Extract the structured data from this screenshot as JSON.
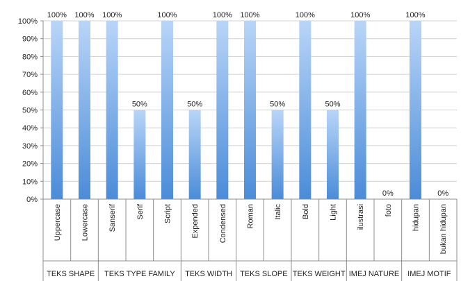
{
  "chart_data": {
    "type": "bar",
    "categories": [
      "Uppercase",
      "Lowercase",
      "Sanserif",
      "Serif",
      "Script",
      "Expended",
      "Condensed",
      "Roman",
      "Italic",
      "Bold",
      "Light",
      "ilustrasi",
      "foto",
      "hidupan",
      "bukan hidupan"
    ],
    "values": [
      100,
      100,
      100,
      50,
      100,
      50,
      100,
      100,
      50,
      100,
      50,
      100,
      0,
      100,
      0
    ],
    "data_labels": [
      "100%",
      "100%",
      "100%",
      "50%",
      "100%",
      "50%",
      "100%",
      "100%",
      "50%",
      "100%",
      "50%",
      "100%",
      "0%",
      "100%",
      "0%"
    ],
    "groups": [
      {
        "label": "TEKS SHAPE",
        "categories": [
          "Uppercase",
          "Lowercase"
        ]
      },
      {
        "label": "TEKS TYPE FAMILY",
        "categories": [
          "Sanserif",
          "Serif",
          "Script"
        ]
      },
      {
        "label": "TEKS WIDTH",
        "categories": [
          "Expended",
          "Condensed"
        ]
      },
      {
        "label": "TEKS SLOPE",
        "categories": [
          "Roman",
          "Italic"
        ]
      },
      {
        "label": "TEKS WEIGHT",
        "categories": [
          "Bold",
          "Light"
        ]
      },
      {
        "label": "IMEJ NATURE",
        "categories": [
          "ilustrasi",
          "foto"
        ]
      },
      {
        "label": "IMEJ MOTIF",
        "categories": [
          "hidupan",
          "bukan hidupan"
        ]
      }
    ],
    "y_ticks": [
      "0%",
      "10%",
      "20%",
      "30%",
      "40%",
      "50%",
      "60%",
      "70%",
      "80%",
      "90%",
      "100%"
    ],
    "ylim": [
      0,
      100
    ],
    "grid": true,
    "legend": "none",
    "bar_colors": {
      "top": "#b9d5f8",
      "bottom": "#4a8cd8"
    },
    "grid_color": "#d0d0d0",
    "axis_color": "#8c8c8c"
  }
}
